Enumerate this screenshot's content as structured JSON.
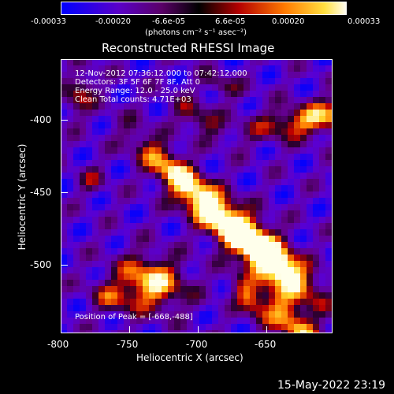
{
  "colorbar": {
    "ticks": [
      "-0.00033",
      "-0.00020",
      "-6.6e-05",
      "6.6e-05",
      "0.00020",
      "0.00033"
    ],
    "unit_label": "(photons cm⁻² s⁻¹ asec⁻²)",
    "colors": [
      "#0000ff",
      "#6a00b8",
      "#000000",
      "#c80000",
      "#ff8c00",
      "#ffff80",
      "#ffffff"
    ]
  },
  "title": "Reconstructed RHESSI Image",
  "info": {
    "line1": "12-Nov-2012 07:36:12.000 to 07:42:12.000",
    "line2": "Detectors: 3F 5F 6F 7F 8F, Att 0",
    "line3": "Energy Range: 12.0 - 25.0 keV",
    "line4": "Clean     Total counts: 4.71E+03",
    "peak": "Position of Peak = [-668,-488]"
  },
  "xaxis": {
    "label": "Heliocentric X (arcsec)",
    "ticks": [
      "-800",
      "-750",
      "-700",
      "-650"
    ]
  },
  "yaxis": {
    "label": "Heliocentric Y (arcsec)",
    "ticks": [
      "-400",
      "-450",
      "-500"
    ]
  },
  "timestamp": "15-May-2022 23:19"
}
